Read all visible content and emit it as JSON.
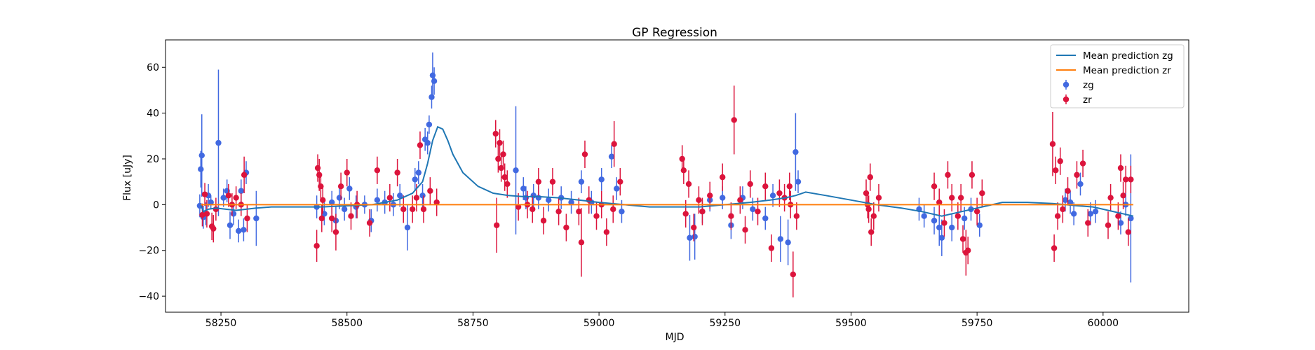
{
  "chart_data": {
    "type": "scatter",
    "title": "GP Regression",
    "xlabel": "MJD",
    "ylabel": "Flux [uJy]",
    "xlim": [
      58140,
      60170
    ],
    "ylim": [
      -47,
      72
    ],
    "xticks": [
      58250,
      58500,
      58750,
      59000,
      59250,
      59500,
      59750,
      60000
    ],
    "yticks": [
      -40,
      -20,
      0,
      20,
      40,
      60
    ],
    "grid": false,
    "legend": {
      "position": "top-right",
      "entries": [
        {
          "label": "Mean prediction zg",
          "kind": "line",
          "color": "#1f77b4"
        },
        {
          "label": "Mean prediction zr",
          "kind": "line",
          "color": "#ff7f0e"
        },
        {
          "label": "zg",
          "kind": "errorbar",
          "color": "#4169e1"
        },
        {
          "label": "zr",
          "kind": "errorbar",
          "color": "#dc143c"
        }
      ]
    },
    "lines": [
      {
        "name": "Mean prediction zg",
        "color": "#1f77b4",
        "x": [
          58210,
          58215,
          58225,
          58240,
          58260,
          58280,
          58300,
          58320,
          58350,
          58400,
          58450,
          58500,
          58550,
          58600,
          58630,
          58650,
          58660,
          58670,
          58680,
          58690,
          58700,
          58710,
          58730,
          58760,
          58790,
          58820,
          58850,
          58880,
          58920,
          58960,
          59000,
          59050,
          59100,
          59150,
          59200,
          59250,
          59300,
          59340,
          59370,
          59390,
          59410,
          59450,
          59500,
          59550,
          59600,
          59640,
          59680,
          59720,
          59760,
          59800,
          59850,
          59900,
          59950,
          59980,
          60000,
          60030,
          60060
        ],
        "y": [
          0,
          -3,
          -2,
          -1.5,
          -2,
          -2.5,
          -2,
          -1.5,
          -1,
          -1,
          -1,
          -0.5,
          0,
          2,
          5,
          10,
          18,
          28,
          34,
          33,
          28,
          22,
          14,
          8,
          5,
          4,
          3.5,
          3.5,
          3,
          2,
          1,
          0,
          -1,
          -1,
          -1,
          0,
          1,
          2,
          3,
          4,
          5.5,
          4,
          2,
          0,
          -1.5,
          -3,
          -5,
          -3,
          -1,
          1,
          1,
          0.5,
          -0.5,
          -1,
          -2,
          -3.5,
          -5
        ]
      },
      {
        "name": "Mean prediction zr",
        "color": "#ff7f0e",
        "x": [
          58210,
          58400,
          58600,
          58800,
          59000,
          59200,
          59400,
          59600,
          59800,
          60000,
          60060
        ],
        "y": [
          0,
          0,
          0,
          0,
          0,
          0,
          0,
          0,
          0,
          0,
          0
        ]
      }
    ],
    "series": [
      {
        "name": "zg",
        "color": "#4169e1",
        "points": [
          [
            58208,
            -0.5,
            5
          ],
          [
            58210,
            15.5,
            8
          ],
          [
            58212,
            21.5,
            18
          ],
          [
            58215,
            -5.5,
            5
          ],
          [
            58220,
            -4,
            5
          ],
          [
            58225,
            4,
            5
          ],
          [
            58230,
            1,
            3
          ],
          [
            58245,
            27,
            32
          ],
          [
            58255,
            3,
            4
          ],
          [
            58262,
            6,
            5
          ],
          [
            58268,
            -9,
            6
          ],
          [
            58275,
            -4,
            5
          ],
          [
            58285,
            -11.5,
            5
          ],
          [
            58290,
            6,
            5
          ],
          [
            58295,
            -11,
            5
          ],
          [
            58300,
            14,
            5
          ],
          [
            58320,
            -6,
            12
          ],
          [
            58440,
            -1,
            5
          ],
          [
            58455,
            -4,
            5
          ],
          [
            58470,
            1,
            5
          ],
          [
            58478,
            -7,
            6
          ],
          [
            58485,
            3,
            5
          ],
          [
            58495,
            -2,
            5
          ],
          [
            58505,
            7,
            5
          ],
          [
            58518,
            -1,
            5
          ],
          [
            58535,
            0,
            4
          ],
          [
            58548,
            -7,
            5
          ],
          [
            58560,
            2,
            5
          ],
          [
            58575,
            1,
            5
          ],
          [
            58592,
            0,
            5
          ],
          [
            58605,
            4,
            5
          ],
          [
            58620,
            -10,
            10
          ],
          [
            58635,
            11,
            5
          ],
          [
            58642,
            14,
            5
          ],
          [
            58650,
            4,
            5
          ],
          [
            58655,
            28.5,
            5
          ],
          [
            58660,
            27,
            5
          ],
          [
            58663,
            35,
            4
          ],
          [
            58668,
            47,
            5
          ],
          [
            58670,
            56.5,
            10
          ],
          [
            58673,
            54,
            6
          ],
          [
            58835,
            15,
            28
          ],
          [
            58850,
            7,
            5
          ],
          [
            58855,
            3,
            5
          ],
          [
            58870,
            4,
            5
          ],
          [
            58880,
            3,
            5
          ],
          [
            58900,
            2,
            5
          ],
          [
            58925,
            3,
            5
          ],
          [
            58945,
            1,
            5
          ],
          [
            58965,
            10,
            5
          ],
          [
            58985,
            1,
            5
          ],
          [
            59005,
            11,
            5
          ],
          [
            59025,
            21,
            5
          ],
          [
            59035,
            7,
            5
          ],
          [
            59045,
            -3,
            5
          ],
          [
            59180,
            -14.5,
            10
          ],
          [
            59190,
            -14,
            10
          ],
          [
            59205,
            -3,
            5
          ],
          [
            59220,
            2,
            5
          ],
          [
            59245,
            3,
            5
          ],
          [
            59262,
            -9,
            6
          ],
          [
            59285,
            3,
            5
          ],
          [
            59305,
            -2,
            5
          ],
          [
            59330,
            -6,
            5
          ],
          [
            59345,
            4,
            5
          ],
          [
            59360,
            -15,
            10
          ],
          [
            59375,
            -16.5,
            10
          ],
          [
            59390,
            23,
            17
          ],
          [
            59395,
            10,
            5
          ],
          [
            59635,
            -2,
            5
          ],
          [
            59645,
            -5,
            5
          ],
          [
            59665,
            -7,
            6
          ],
          [
            59675,
            -10,
            8
          ],
          [
            59680,
            -14.5,
            8
          ],
          [
            59700,
            -10,
            6
          ],
          [
            59725,
            -6,
            5
          ],
          [
            59738,
            -2,
            5
          ],
          [
            59755,
            -9,
            5
          ],
          [
            59925,
            2,
            5
          ],
          [
            59935,
            1,
            5
          ],
          [
            59942,
            -4,
            5
          ],
          [
            59955,
            9,
            5
          ],
          [
            59975,
            -4,
            5
          ],
          [
            59985,
            -3,
            5
          ],
          [
            60035,
            -8,
            5
          ],
          [
            60045,
            0,
            5
          ],
          [
            60055,
            -6,
            28
          ]
        ]
      },
      {
        "name": "zr",
        "color": "#dc143c",
        "points": [
          [
            58213,
            -4.5,
            5
          ],
          [
            58218,
            4.5,
            5
          ],
          [
            58222,
            -4,
            6
          ],
          [
            58232,
            -9.5,
            6
          ],
          [
            58235,
            -10.5,
            6
          ],
          [
            58240,
            -2,
            5
          ],
          [
            58265,
            4,
            5
          ],
          [
            58272,
            0,
            5
          ],
          [
            58280,
            3,
            5
          ],
          [
            58290,
            0,
            5
          ],
          [
            58296,
            13,
            8
          ],
          [
            58302,
            -6,
            6
          ],
          [
            58440,
            -18,
            7
          ],
          [
            58442,
            16,
            6
          ],
          [
            58445,
            13,
            7
          ],
          [
            58448,
            8,
            6
          ],
          [
            58450,
            -6,
            6
          ],
          [
            58452,
            2,
            6
          ],
          [
            58470,
            -6,
            6
          ],
          [
            58478,
            -12,
            8
          ],
          [
            58488,
            8,
            6
          ],
          [
            58500,
            14,
            6
          ],
          [
            58508,
            -5,
            6
          ],
          [
            58520,
            0,
            6
          ],
          [
            58545,
            -8,
            6
          ],
          [
            58560,
            15,
            6
          ],
          [
            58585,
            3,
            6
          ],
          [
            58600,
            14,
            6
          ],
          [
            58612,
            -2,
            6
          ],
          [
            58630,
            -2,
            6
          ],
          [
            58638,
            3,
            6
          ],
          [
            58645,
            26,
            6
          ],
          [
            58652,
            -2,
            6
          ],
          [
            58665,
            6,
            6
          ],
          [
            58678,
            1,
            6
          ],
          [
            58795,
            31,
            6
          ],
          [
            58797,
            -9,
            12
          ],
          [
            58800,
            20,
            6
          ],
          [
            58803,
            27,
            6
          ],
          [
            58806,
            16,
            6
          ],
          [
            58810,
            22,
            6
          ],
          [
            58813,
            12,
            6
          ],
          [
            58818,
            9,
            6
          ],
          [
            58840,
            -1,
            6
          ],
          [
            58858,
            0,
            6
          ],
          [
            58868,
            -2,
            6
          ],
          [
            58880,
            10,
            6
          ],
          [
            58890,
            -7,
            6
          ],
          [
            58908,
            10,
            6
          ],
          [
            58920,
            -3,
            6
          ],
          [
            58935,
            -10,
            6
          ],
          [
            58960,
            -3,
            6
          ],
          [
            58965,
            -16.5,
            15
          ],
          [
            58972,
            22,
            6
          ],
          [
            58980,
            2,
            6
          ],
          [
            58995,
            -5,
            6
          ],
          [
            59005,
            0,
            6
          ],
          [
            59015,
            -12,
            6
          ],
          [
            59028,
            -2,
            6
          ],
          [
            59030,
            26.5,
            10
          ],
          [
            59042,
            10,
            6
          ],
          [
            59165,
            20,
            6
          ],
          [
            59168,
            15,
            6
          ],
          [
            59172,
            -4,
            6
          ],
          [
            59178,
            9,
            6
          ],
          [
            59188,
            -10,
            6
          ],
          [
            59198,
            2,
            6
          ],
          [
            59205,
            -3,
            6
          ],
          [
            59220,
            4,
            6
          ],
          [
            59245,
            12,
            6
          ],
          [
            59262,
            -5,
            6
          ],
          [
            59268,
            37,
            15
          ],
          [
            59280,
            2,
            6
          ],
          [
            59290,
            -11,
            6
          ],
          [
            59300,
            9,
            6
          ],
          [
            59315,
            -3,
            6
          ],
          [
            59330,
            8,
            6
          ],
          [
            59342,
            -19,
            6
          ],
          [
            59358,
            5,
            6
          ],
          [
            59368,
            3,
            6
          ],
          [
            59378,
            8,
            6
          ],
          [
            59380,
            0,
            6
          ],
          [
            59385,
            -30.5,
            10
          ],
          [
            59392,
            -5,
            6
          ],
          [
            59530,
            5,
            6
          ],
          [
            59533,
            0,
            6
          ],
          [
            59535,
            -2,
            6
          ],
          [
            59538,
            12,
            6
          ],
          [
            59540,
            -12,
            6
          ],
          [
            59545,
            -5,
            6
          ],
          [
            59555,
            3,
            6
          ],
          [
            59665,
            8,
            6
          ],
          [
            59675,
            1,
            6
          ],
          [
            59685,
            -8,
            6
          ],
          [
            59692,
            13,
            6
          ],
          [
            59700,
            3,
            6
          ],
          [
            59712,
            -5,
            6
          ],
          [
            59718,
            3,
            6
          ],
          [
            59722,
            -15,
            6
          ],
          [
            59728,
            -21,
            10
          ],
          [
            59732,
            -20,
            6
          ],
          [
            59740,
            13,
            6
          ],
          [
            59750,
            -3,
            6
          ],
          [
            59760,
            5,
            6
          ],
          [
            59900,
            26.5,
            14
          ],
          [
            59903,
            -19,
            6
          ],
          [
            59906,
            15,
            6
          ],
          [
            59910,
            -5,
            6
          ],
          [
            59915,
            19,
            6
          ],
          [
            59920,
            -2,
            6
          ],
          [
            59930,
            6,
            6
          ],
          [
            59948,
            13,
            6
          ],
          [
            59960,
            18,
            6
          ],
          [
            59970,
            -8,
            6
          ],
          [
            60010,
            -9,
            6
          ],
          [
            60015,
            3,
            6
          ],
          [
            60030,
            -5,
            6
          ],
          [
            60035,
            16,
            6
          ],
          [
            60040,
            4,
            6
          ],
          [
            60045,
            11,
            6
          ],
          [
            60050,
            -12,
            6
          ],
          [
            60055,
            11,
            6
          ]
        ]
      }
    ]
  }
}
